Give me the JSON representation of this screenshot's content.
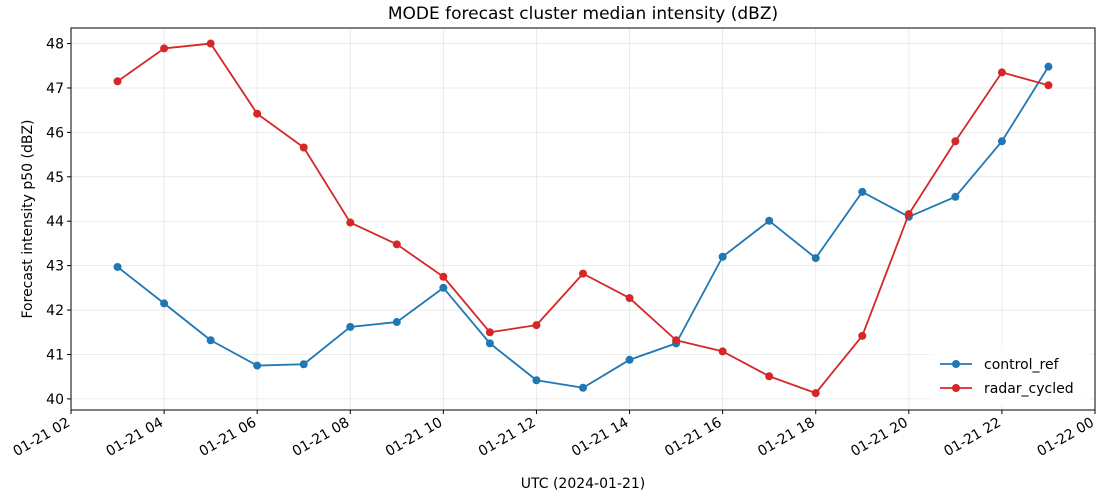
{
  "chart_data": {
    "type": "line",
    "title": "MODE forecast cluster median intensity (dBZ)",
    "xlabel": "UTC (2024-01-21)",
    "ylabel": "Forecast intensity p50 (dBZ)",
    "x": [
      "2024-01-21 03:00",
      "2024-01-21 04:00",
      "2024-01-21 05:00",
      "2024-01-21 06:00",
      "2024-01-21 07:00",
      "2024-01-21 08:00",
      "2024-01-21 09:00",
      "2024-01-21 10:00",
      "2024-01-21 11:00",
      "2024-01-21 12:00",
      "2024-01-21 13:00",
      "2024-01-21 14:00",
      "2024-01-21 15:00",
      "2024-01-21 16:00",
      "2024-01-21 17:00",
      "2024-01-21 18:00",
      "2024-01-21 19:00",
      "2024-01-21 20:00",
      "2024-01-21 21:00",
      "2024-01-21 22:00",
      "2024-01-21 23:00"
    ],
    "xlim": [
      "2024-01-21 02:00",
      "2024-01-22 00:00"
    ],
    "xticks": [
      "2024-01-21 02:00",
      "2024-01-21 04:00",
      "2024-01-21 06:00",
      "2024-01-21 08:00",
      "2024-01-21 10:00",
      "2024-01-21 12:00",
      "2024-01-21 14:00",
      "2024-01-21 16:00",
      "2024-01-21 18:00",
      "2024-01-21 20:00",
      "2024-01-21 22:00",
      "2024-01-22 00:00"
    ],
    "xtick_labels": [
      "01-21 02",
      "01-21 04",
      "01-21 06",
      "01-21 08",
      "01-21 10",
      "01-21 12",
      "01-21 14",
      "01-21 16",
      "01-21 18",
      "01-21 20",
      "01-21 22",
      "01-22 00"
    ],
    "ylim": [
      39.75,
      48.35
    ],
    "yticks": [
      40,
      41,
      42,
      43,
      44,
      45,
      46,
      47,
      48
    ],
    "grid": true,
    "legend_position": "lower-right",
    "series": [
      {
        "name": "control_ref",
        "color": "#1f77b4",
        "values": [
          42.97,
          42.15,
          41.32,
          40.75,
          40.78,
          41.62,
          41.73,
          42.5,
          41.25,
          40.42,
          40.25,
          40.88,
          41.25,
          43.2,
          44.01,
          43.17,
          44.66,
          44.1,
          44.55,
          45.8,
          47.48
        ]
      },
      {
        "name": "radar_cycled",
        "color": "#d62728",
        "values": [
          47.15,
          47.89,
          48.0,
          46.42,
          45.66,
          43.97,
          43.48,
          42.75,
          41.5,
          41.66,
          42.82,
          42.27,
          41.32,
          41.07,
          40.51,
          40.13,
          41.42,
          44.16,
          45.8,
          47.35,
          47.06
        ]
      }
    ]
  }
}
